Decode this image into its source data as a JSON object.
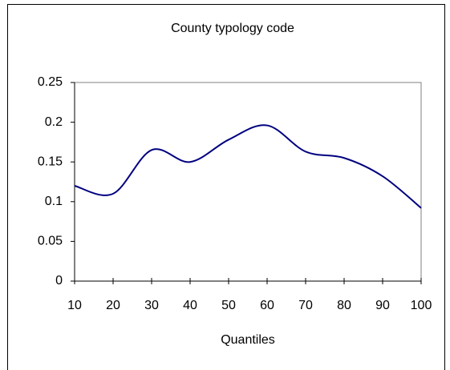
{
  "chart_data": {
    "type": "line",
    "title": "County typology code",
    "x_label": "Quantiles",
    "x": [
      10,
      20,
      30,
      40,
      50,
      60,
      70,
      80,
      90,
      100
    ],
    "series": [
      {
        "color": "#000080",
        "values": [
          0.12,
          0.11,
          0.165,
          0.15,
          0.178,
          0.196,
          0.163,
          0.155,
          0.132,
          0.092
        ]
      }
    ],
    "xlim": [
      10,
      100
    ],
    "xticks": [
      10,
      20,
      30,
      40,
      50,
      60,
      70,
      80,
      90,
      100
    ],
    "ylim": [
      0,
      0.25
    ],
    "yticks": [
      0,
      0.05,
      0.1,
      0.15,
      0.2,
      0.25
    ],
    "grid": false
  }
}
